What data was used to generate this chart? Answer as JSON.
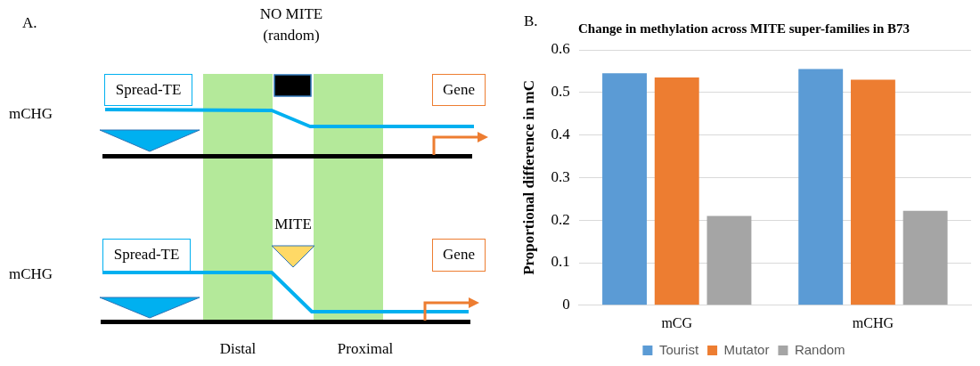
{
  "chart_data": [
    {
      "type": "other",
      "title": "A.",
      "annotations": [
        "NO MITE (random)",
        "Spread-TE",
        "Gene",
        "mCHG",
        "MITE",
        "Spread-TE",
        "Gene",
        "mCHG",
        "Distal",
        "Proximal"
      ]
    },
    {
      "type": "bar",
      "title": "Change in methylation across MITE super-families in B73",
      "ylabel": "Proportional difference in mC",
      "annotations": [
        "B."
      ],
      "categories": [
        "mCG",
        "mCHG"
      ],
      "series": [
        {
          "name": "Tourist",
          "color": "#5b9bd5",
          "values": [
            0.545,
            0.555
          ]
        },
        {
          "name": "Mutator",
          "color": "#ed7d31",
          "values": [
            0.535,
            0.53
          ]
        },
        {
          "name": "Random",
          "color": "#a5a5a5",
          "values": [
            0.21,
            0.222
          ]
        }
      ],
      "ylim": [
        0,
        0.6
      ],
      "yticks": [
        0,
        0.1,
        0.2,
        0.3,
        0.4,
        0.5,
        0.6
      ],
      "grid": "y",
      "legend": "bottom"
    }
  ]
}
